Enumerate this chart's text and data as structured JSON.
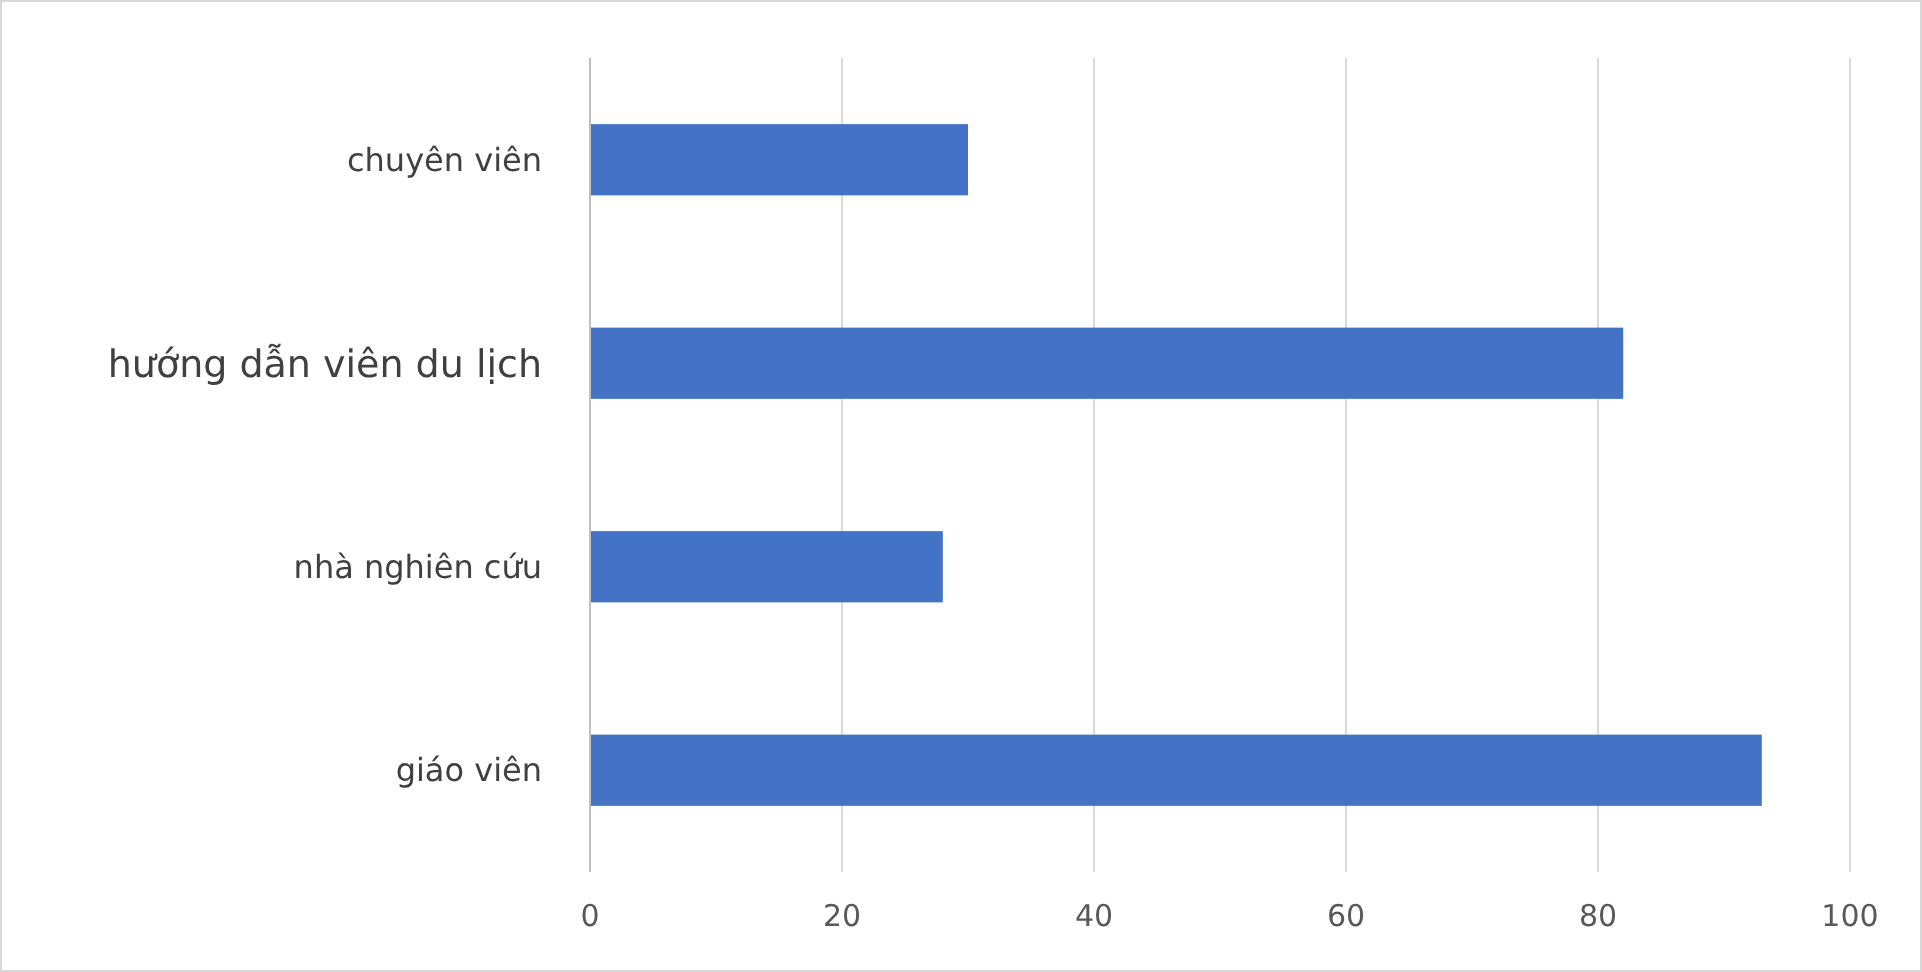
{
  "chart_data": {
    "type": "bar",
    "orientation": "horizontal",
    "categories": [
      "chuyên viên",
      "hướng dẫn viên du lịch",
      "nhà nghiên cứu",
      "giáo viên"
    ],
    "values": [
      30,
      82,
      28,
      93
    ],
    "color": "#4472c4",
    "xlim": [
      0,
      100
    ],
    "xticks": [
      0,
      20,
      40,
      60,
      80,
      100
    ],
    "grid": "x"
  }
}
